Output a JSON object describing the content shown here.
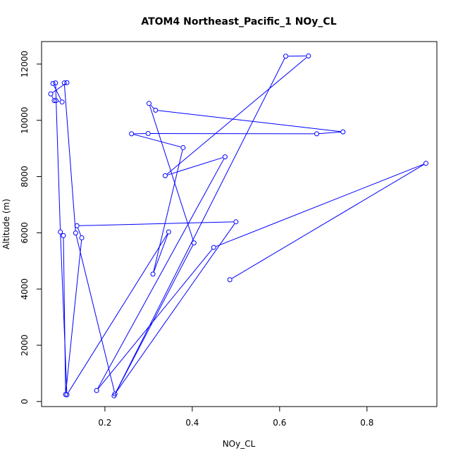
{
  "chart_data": {
    "type": "line",
    "title": "ATOM4 Northeast_Pacific_1 NOy_CL",
    "xlabel": "NOy_CL",
    "ylabel": "Altitude (m)",
    "xlim": [
      0.055,
      0.96
    ],
    "ylim": [
      -180,
      12800
    ],
    "x_ticks": [
      0.2,
      0.4,
      0.6,
      0.8
    ],
    "y_ticks": [
      0,
      2000,
      4000,
      6000,
      8000,
      10000,
      12000
    ],
    "grid": false,
    "legend": "none",
    "series": [
      {
        "color": "#0000ff",
        "markers": "open-circle",
        "x": [
          0.486,
          0.935,
          0.449,
          0.181,
          0.475,
          0.338,
          0.666,
          0.614,
          0.221,
          0.404,
          0.301,
          0.316,
          0.745,
          0.685,
          0.299,
          0.261,
          0.379,
          0.31,
          0.346,
          0.113,
          0.098,
          0.087,
          0.081,
          0.102,
          0.088,
          0.084,
          0.076,
          0.113,
          0.107,
          0.133,
          0.223,
          0.5,
          0.136,
          0.147,
          0.11,
          0.105
        ],
        "y": [
          4330,
          8470,
          5480,
          390,
          8700,
          8030,
          12290,
          12280,
          200,
          5640,
          10600,
          10360,
          9590,
          9520,
          9530,
          9520,
          9030,
          4530,
          6030,
          240,
          6030,
          11330,
          11310,
          10650,
          10700,
          10700,
          10940,
          11340,
          11330,
          5990,
          270,
          6390,
          6250,
          5820,
          250,
          5900
        ]
      }
    ]
  }
}
